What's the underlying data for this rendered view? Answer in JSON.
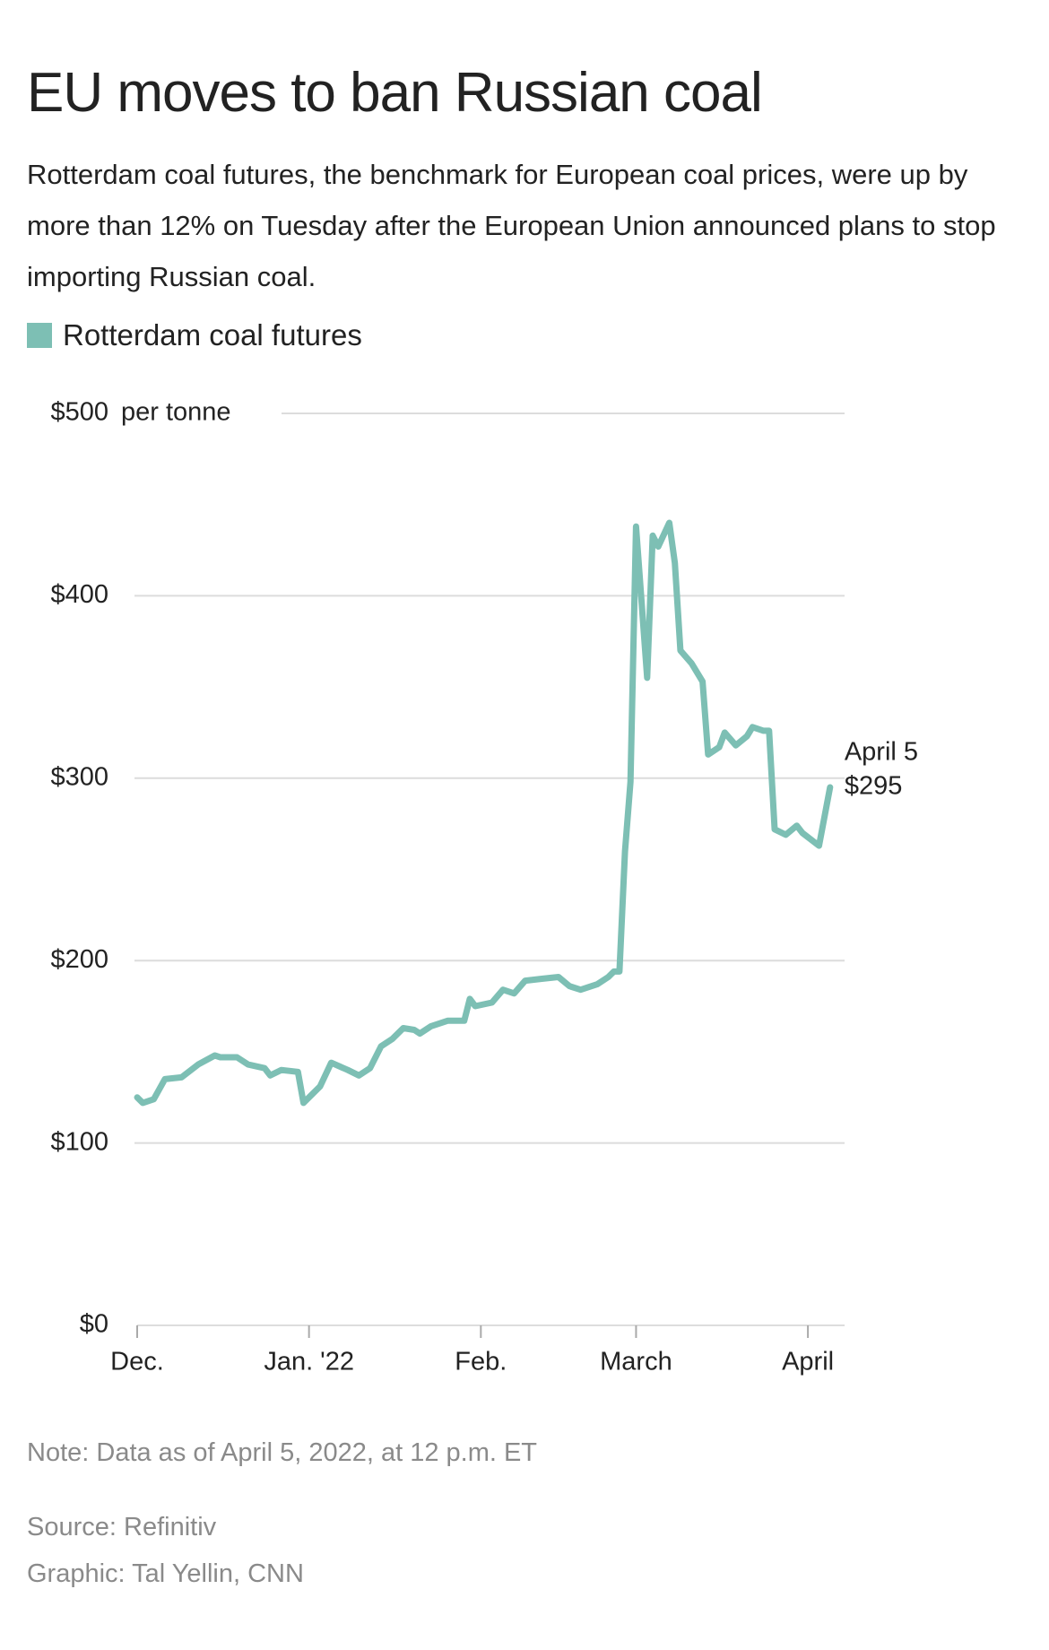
{
  "chart_data": {
    "type": "line",
    "title": "EU moves to ban Russian coal",
    "subtitle": "Rotterdam coal futures, the benchmark for European coal prices, were up by more than 12% on Tuesday after the European Union announced plans to stop importing Russian coal.",
    "y_unit": "per tonne",
    "series": [
      {
        "name": "Rotterdam coal futures",
        "color": "#7dbfb4",
        "values": [
          125,
          122,
          124,
          135,
          136,
          143,
          148,
          147,
          147,
          143,
          141,
          137,
          140,
          139,
          122,
          131,
          144,
          140,
          137,
          141,
          153,
          157,
          163,
          162,
          160,
          164,
          167,
          167,
          179,
          175,
          177,
          184,
          182,
          189,
          190,
          191,
          186,
          184,
          187,
          191,
          194,
          194,
          260,
          298,
          438,
          355,
          433,
          427,
          440,
          418,
          370,
          363,
          353,
          313,
          317,
          325,
          318,
          323,
          328,
          326,
          326,
          272,
          269,
          274,
          270,
          263,
          295
        ]
      }
    ],
    "x": [
      0,
      1,
      3,
      5,
      8,
      11,
      14,
      15,
      18,
      20,
      23,
      24,
      26,
      29,
      30,
      33,
      35,
      38,
      40,
      42,
      44,
      46,
      48,
      50,
      51,
      53,
      56,
      59,
      60,
      61,
      64,
      66,
      68,
      70,
      73,
      76,
      78,
      80,
      83,
      85,
      86,
      87,
      88,
      89,
      90,
      92,
      93,
      94,
      96,
      97,
      98,
      100,
      102,
      103,
      105,
      106,
      108,
      110,
      111,
      113,
      114,
      115,
      117,
      119,
      120,
      123,
      125
    ],
    "xlim": [
      0,
      126
    ],
    "xticks": [
      {
        "value": 0,
        "label": "Dec."
      },
      {
        "value": 31,
        "label": "Jan. '22"
      },
      {
        "value": 62,
        "label": "Feb."
      },
      {
        "value": 90,
        "label": "March"
      },
      {
        "value": 121,
        "label": "April"
      }
    ],
    "ylim": [
      0,
      500
    ],
    "yticks": [
      {
        "value": 0,
        "label": "$0"
      },
      {
        "value": 100,
        "label": "$100"
      },
      {
        "value": 200,
        "label": "$200"
      },
      {
        "value": 300,
        "label": "$300"
      },
      {
        "value": 400,
        "label": "$400"
      },
      {
        "value": 500,
        "label": "$500"
      }
    ],
    "grid": true,
    "annotation": [
      "April 5",
      "$295"
    ],
    "note": "Note: Data as of April 5, 2022, at 12 p.m. ET",
    "source": "Source: Refinitiv",
    "credit": "Graphic: Tal Yellin, CNN"
  }
}
